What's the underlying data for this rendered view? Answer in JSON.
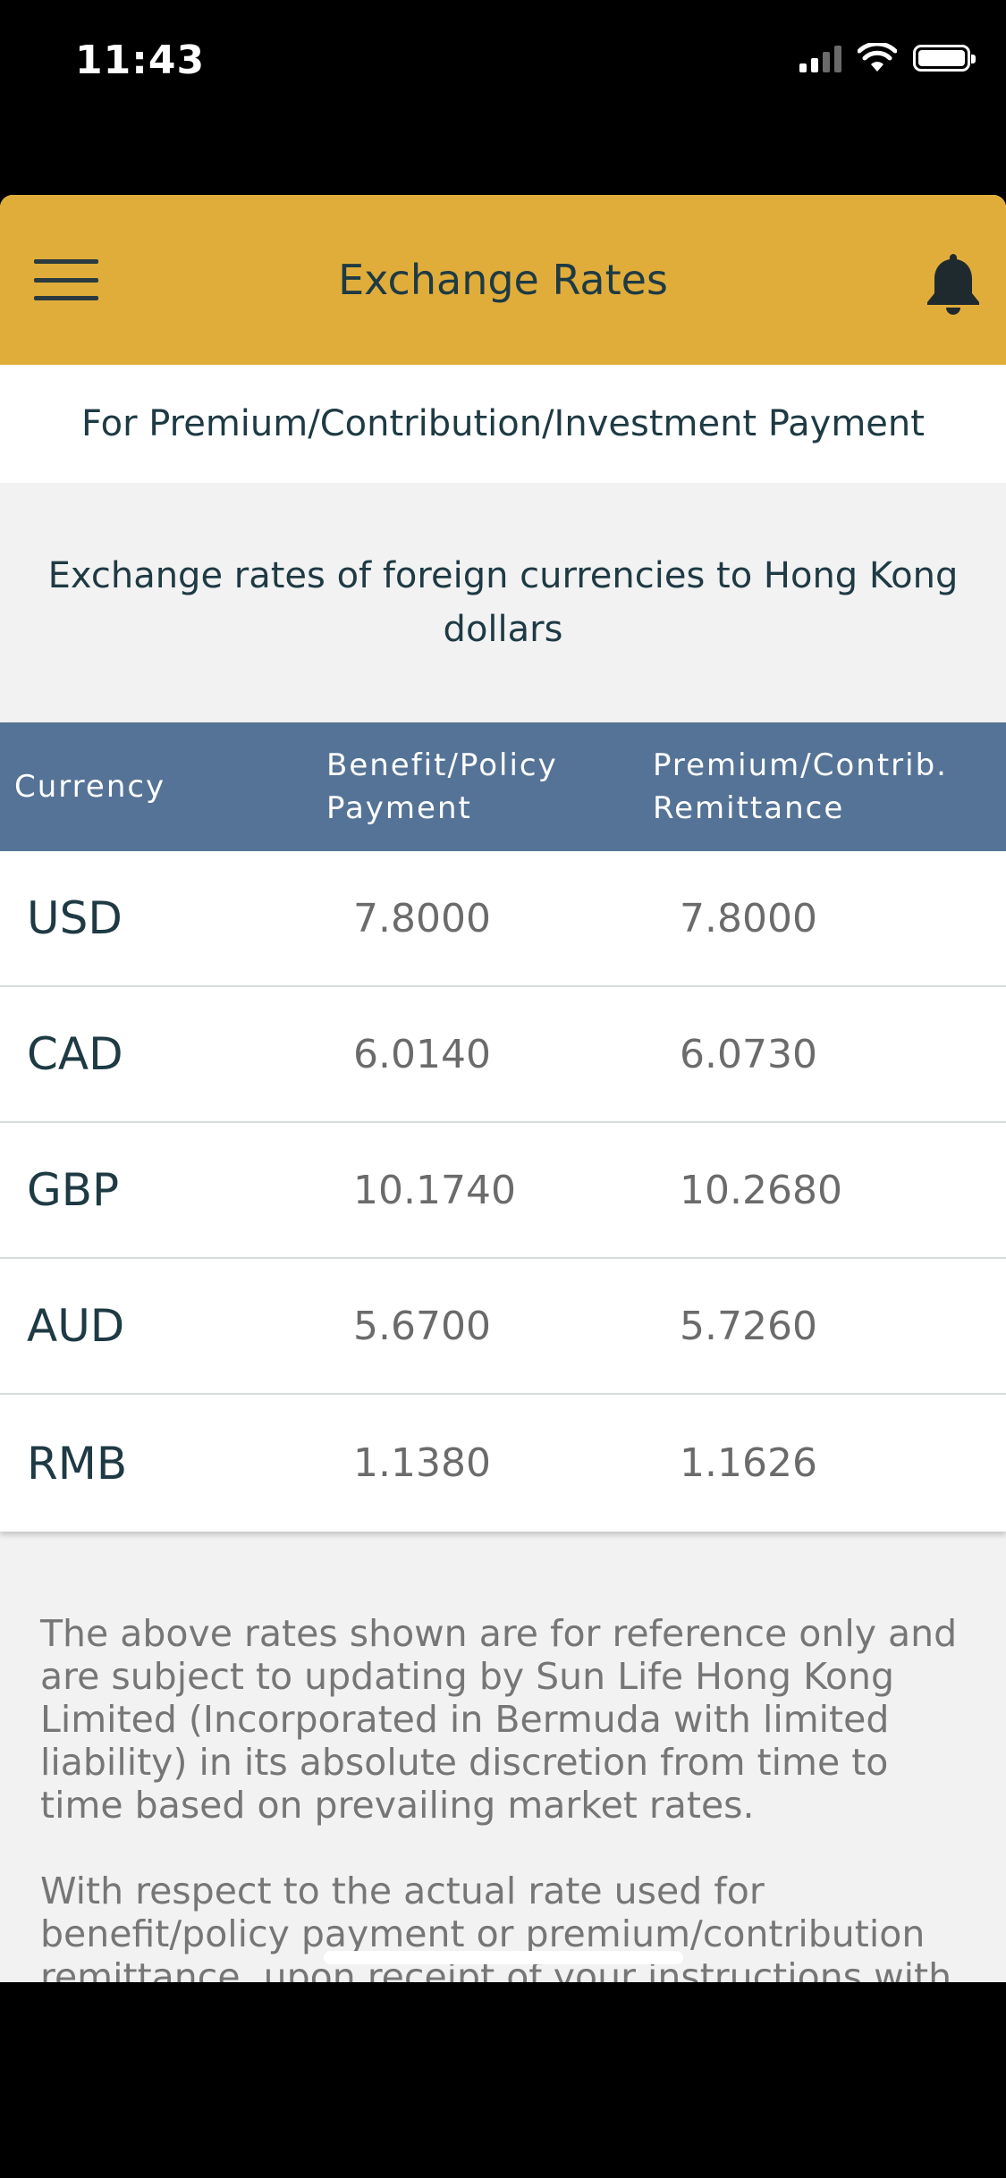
{
  "status_bar": {
    "time": "11:43"
  },
  "header": {
    "title": "Exchange Rates",
    "menu_icon": "hamburger-menu-icon",
    "bell_icon": "bell-icon",
    "accent_color": "#e0ad3b"
  },
  "subheader": {
    "text": "For Premium/Contribution/Investment Payment"
  },
  "intro": {
    "text": "Exchange rates of foreign currencies to Hong Kong dollars"
  },
  "table": {
    "header_color": "#557396",
    "columns": [
      "Currency",
      "Benefit/Policy Payment",
      "Premium/Contrib. Remittance"
    ],
    "rows": [
      {
        "currency": "USD",
        "benefit": "7.8000",
        "premium": "7.8000"
      },
      {
        "currency": "CAD",
        "benefit": "6.0140",
        "premium": "6.0730"
      },
      {
        "currency": "GBP",
        "benefit": "10.1740",
        "premium": "10.2680"
      },
      {
        "currency": "AUD",
        "benefit": "5.6700",
        "premium": "5.7260"
      },
      {
        "currency": "RMB",
        "benefit": "1.1380",
        "premium": "1.1626"
      }
    ]
  },
  "disclaimer": {
    "paragraphs": [
      "The above rates shown are for reference only and are subject to updating by Sun Life Hong Kong Limited (Incorporated in Bermuda with limited liability) in its absolute discretion from time to time based on prevailing market rates.",
      "With respect to the actual rate used for benefit/policy payment or premium/contribution remittance, upon receipt of your instructions with"
    ]
  }
}
